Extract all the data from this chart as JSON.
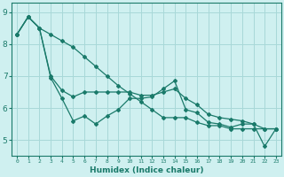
{
  "xlabel": "Humidex (Indice chaleur)",
  "background_color": "#cff0f0",
  "grid_color": "#a8d8d8",
  "line_color": "#1a7a6a",
  "xlim": [
    -0.5,
    23.5
  ],
  "ylim": [
    4.5,
    9.3
  ],
  "yticks": [
    5,
    6,
    7,
    8,
    9
  ],
  "xticks": [
    0,
    1,
    2,
    3,
    4,
    5,
    6,
    7,
    8,
    9,
    10,
    11,
    12,
    13,
    14,
    15,
    16,
    17,
    18,
    19,
    20,
    21,
    22,
    23
  ],
  "series": [
    [
      8.3,
      8.85,
      8.5,
      6.95,
      6.3,
      5.6,
      5.75,
      5.5,
      5.75,
      5.95,
      6.3,
      6.3,
      6.35,
      6.6,
      6.85,
      5.95,
      5.85,
      5.55,
      5.5,
      5.4,
      5.5,
      5.5,
      4.8,
      5.35
    ],
    [
      8.3,
      8.85,
      8.5,
      7.0,
      6.55,
      6.35,
      6.5,
      6.5,
      6.5,
      6.5,
      6.5,
      6.4,
      6.4,
      6.5,
      6.6,
      6.3,
      6.1,
      5.8,
      5.7,
      5.65,
      5.6,
      5.5,
      5.35,
      5.35
    ],
    [
      8.3,
      8.85,
      8.5,
      8.3,
      8.1,
      7.9,
      7.6,
      7.3,
      7.0,
      6.7,
      6.45,
      6.2,
      5.95,
      5.7,
      5.7,
      5.7,
      5.55,
      5.45,
      5.45,
      5.35,
      5.35,
      5.35,
      5.35,
      5.35
    ]
  ]
}
